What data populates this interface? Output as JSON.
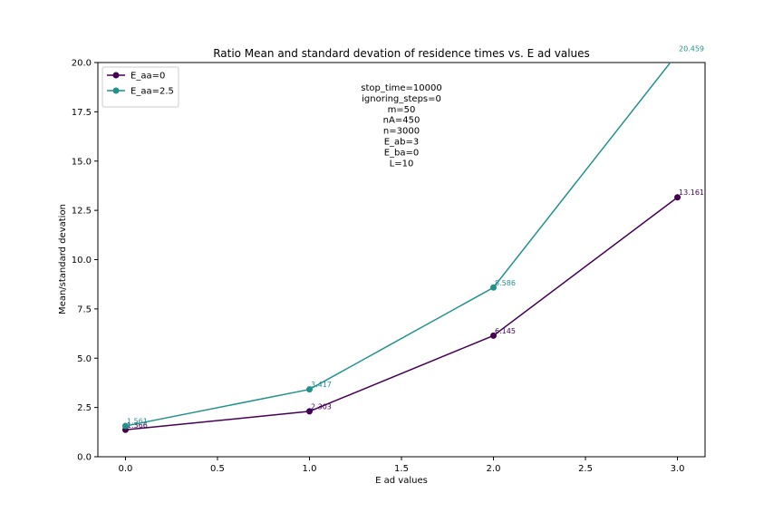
{
  "chart_data": {
    "type": "line",
    "title": "Ratio Mean and standard devation of residence times vs. E ad values",
    "xlabel": "E ad values",
    "ylabel": "Mean/standard devation",
    "xlim": [
      -0.15,
      3.15
    ],
    "ylim": [
      0,
      20
    ],
    "x_ticks": [
      "0.0",
      "0.5",
      "1.0",
      "1.5",
      "2.0",
      "2.5",
      "3.0"
    ],
    "y_ticks": [
      "0.0",
      "2.5",
      "5.0",
      "7.5",
      "10.0",
      "12.5",
      "15.0",
      "17.5",
      "20.0"
    ],
    "x": [
      0,
      1,
      2,
      3
    ],
    "series": [
      {
        "name": "E_aa=0",
        "color": "#440154",
        "values": [
          1.366,
          2.303,
          6.145,
          13.161
        ],
        "labels": [
          "1.366",
          "2.303",
          "6.145",
          "13.161"
        ]
      },
      {
        "name": "E_aa=2.5",
        "color": "#21918c",
        "values": [
          1.561,
          3.417,
          8.586,
          20.459
        ],
        "labels": [
          "1.561",
          "3.417",
          "8.586",
          "20.459"
        ]
      }
    ],
    "annotation": [
      "stop_time=10000",
      "ignoring_steps=0",
      "m=50",
      "nA=450",
      "n=3000",
      "E_ab=3",
      "E_ba=0",
      "L=10"
    ],
    "legend_position": "upper-left",
    "grid": false
  }
}
